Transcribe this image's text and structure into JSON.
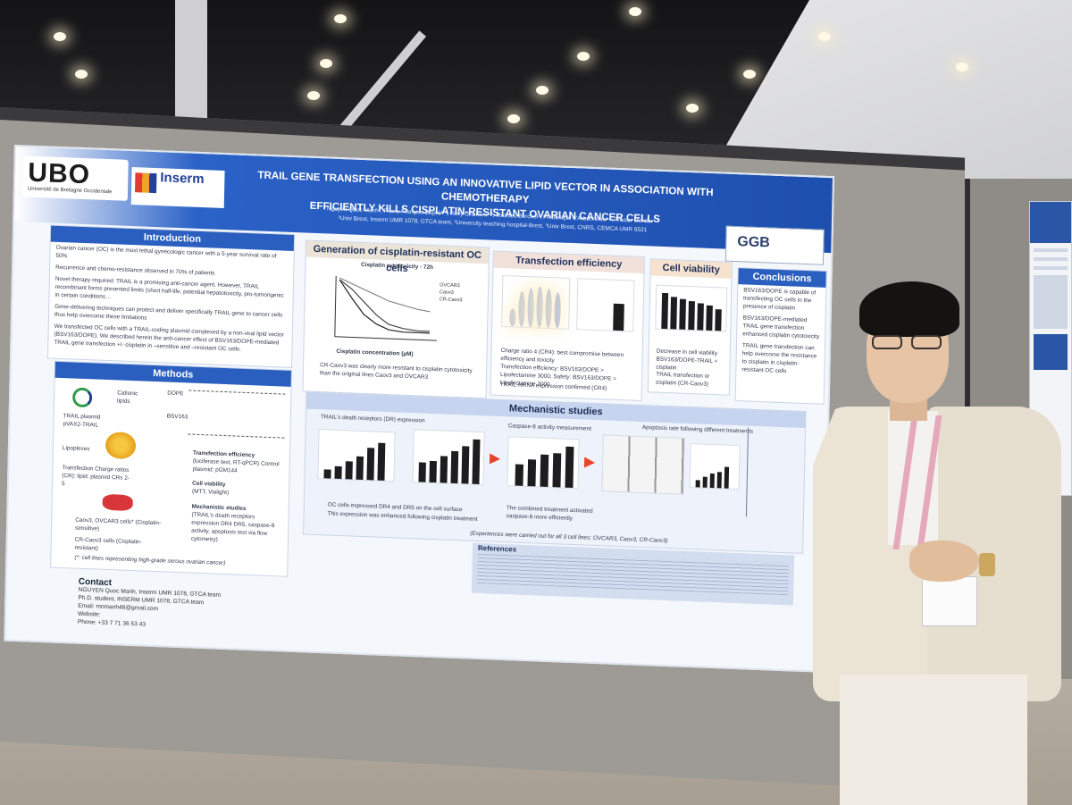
{
  "poster": {
    "title_line1": "TRAIL GENE TRANSFECTION USING AN INNOVATIVE LIPID VECTOR IN ASSOCIATION WITH CHEMOTHERAPY",
    "title_line2": "EFFICIENTLY KILLS CISPLATIN-RESISTANT OVARIAN CANCER CELLS",
    "authors": "Nguyen Quoc Manh¹, Pierre-François Dupré¹·², Rosy Ghanem¹·², Mathieu Berchel³, Frédérique d'Arbonneau¹·², Tristan Montier¹·²",
    "affiliations": "¹Univ Brest, Inserm UMR 1078, GTCA team, ²University teaching hospital-Brest, ³Univ Brest, CNRS, CEMCA UMR 6521",
    "logo_ubo": "UBO",
    "logo_ubo_sub": "Université de Bretagne Occidentale",
    "logo_inserm": "Inserm",
    "logo_ggb": "GGB",
    "sections": {
      "introduction": "Introduction",
      "methods": "Methods",
      "generation": "Generation of cisplatin-resistant OC cells",
      "transfection": "Transfection efficiency",
      "viability": "Cell viability",
      "conclusions": "Conclusions",
      "mechanistic": "Mechanistic studies",
      "references": "References"
    },
    "intro_bullets": [
      "Ovarian cancer (OC) is the most lethal gynecologic cancer with a 5-year survival rate of 50%",
      "Recurrence and chemo-resistance observed in 70% of patients",
      "Novel therapy required: TRAIL is a promising anti-cancer agent. However, TRAIL recombinant forms presented limits (short half-life, potential hepatotoxicity, pro-tumorigenic in certain conditions…",
      "Gene-delivering techniques can protect and deliver specifically TRAIL gene to cancer cells thus help overcome these limitations",
      "We transfected OC cells with a TRAIL-coding plasmid complexed by a non-viral lipid vector (BSV163/DOPE). We described herein the anti-cancer effect of BSV163/DOPE-mediated TRAIL gene transfection +/- cisplatin in –sensitive and –resistant OC cells."
    ],
    "methods_labels": {
      "plasmid": "TRAIL plasmid pVAX2-TRAIL",
      "lipids": "Cationic lipids",
      "dope": "DOPE",
      "bsv": "BSV163",
      "lipoplexes": "Lipoplexes",
      "transfection": "Transfection Charge ratios (CR): lipid: plasmid CRs 2-5",
      "efficiency": "Transfection efficiency",
      "efficiency_detail": "(luciferase test, RT-qPCR) Control plasmid: pGM144",
      "viability": "Cell viability",
      "viability_detail": "(MTT, Vialight)",
      "mechanistic": "Mechanistic studies",
      "mechanistic_detail": "(TRAIL's death receptors expression DR4 DR5, caspase-8 activity, apoptosis test via flow cytometry)",
      "cells_sensitive": "Caov3, OVCAR3 cells* (Cisplatin-sensitive)",
      "cells_resistant": "CR-Caov3 cells (Cisplatin-resistant)",
      "footnote": "(*: cell lines representing high-grade serous ovarian cancer)"
    },
    "generation_plot_title": "Cisplatin cytotoxicity - 72h",
    "generation_xlabel": "Cisplatin concentration (µM)",
    "generation_legend": [
      "OVCAR3",
      "Caov3",
      "CR-Caov3"
    ],
    "generation_text": "CR-Caov3 was clearly more resistant to cisplatin cytotoxicity than the original lines Caov3 and OVCAR3",
    "transfection_text": [
      "Charge ratio 4 (CR4): best compromise between efficiency and toxicity",
      "Transfection efficiency: BSV163/DOPE > Lipofectamine 3000; Safety: BSV163/DOPE > Lipofectamine 3000",
      "TRAIL mRNA expression confirmed (CR4)"
    ],
    "viability_text": [
      "Decrease in cell viability BSV163/DOPE-TRAIL + cisplatin",
      "TRAIL transfection or cisplatin (CR-Caov3)"
    ],
    "conclusions": [
      "BSV163/DOPE is capable of transfecting OC cells in the presence of cisplatin",
      "BSV163/DOPE-mediated TRAIL gene transfection enhanced cisplatin cytotoxicity",
      "TRAIL gene transfection can help overcome the resistance to cisplatin in cisplatin-resistant OC cells"
    ],
    "mechanistic_titles": [
      "TRAIL's death receptors (DR) expression",
      "Caspase-8 activity measurement",
      "Apoptosis rate following different treatments"
    ],
    "mechanistic_bullets": [
      "OC cells expressed DR4 and DR5 on the cell surface",
      "This expression was enhanced following cisplatin treatment",
      "The combined treatment activated caspase-8 more efficiently"
    ],
    "mechanistic_footnote": "(Experiences were carried out for all 3 cell lines: OVCAR3, Caov3, CR-Caov3)",
    "contact": {
      "head": "Contact",
      "name": "NGUYEN Quoc Manh, Inserm UMR 1078, GTCA team",
      "role": "Ph.D. student, INSERM UMR 1078, GTCA team",
      "email": "Email: mnmanh48@gmail.com",
      "website": "Website:",
      "phone": "Phone: +33 7 71 36 53 43"
    }
  },
  "colors": {
    "poster_blue": "#2a5fc0",
    "accent_red": "#d2371f",
    "jacket": "#ebe3d4"
  }
}
